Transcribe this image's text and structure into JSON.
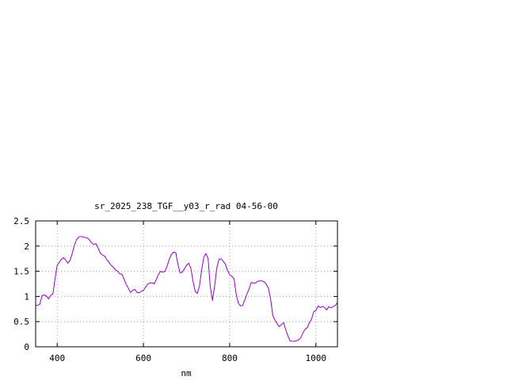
{
  "chart_data": {
    "type": "line",
    "title": "sr_2025_238_TGF__y03_r_rad 04-56-00",
    "xlabel": "nm",
    "ylabel": "",
    "xlim": [
      350,
      1050
    ],
    "ylim": [
      0,
      2.5
    ],
    "x_ticks": [
      400,
      600,
      800,
      1000
    ],
    "y_ticks": [
      0,
      0.5,
      1,
      1.5,
      2,
      2.5
    ],
    "x_tick_labels": [
      "400",
      "600",
      "800",
      "1000"
    ],
    "y_tick_labels": [
      "0",
      "0.5",
      "1",
      "1.5",
      "2",
      "2.5"
    ],
    "grid": true,
    "legend": "none",
    "series": [
      {
        "color": "#9400d3",
        "x": [
          350,
          355,
          360,
          365,
          370,
          375,
          380,
          385,
          390,
          395,
          400,
          405,
          410,
          415,
          420,
          425,
          430,
          435,
          440,
          445,
          450,
          455,
          460,
          465,
          470,
          475,
          480,
          485,
          490,
          495,
          500,
          505,
          510,
          515,
          520,
          525,
          530,
          535,
          540,
          545,
          550,
          555,
          560,
          565,
          570,
          575,
          580,
          585,
          590,
          595,
          600,
          605,
          610,
          615,
          620,
          625,
          630,
          635,
          640,
          645,
          650,
          655,
          660,
          665,
          670,
          675,
          680,
          685,
          690,
          695,
          700,
          705,
          710,
          715,
          720,
          725,
          730,
          735,
          740,
          745,
          750,
          755,
          760,
          765,
          770,
          775,
          780,
          785,
          790,
          795,
          800,
          805,
          810,
          815,
          820,
          825,
          830,
          835,
          840,
          845,
          850,
          855,
          860,
          865,
          870,
          875,
          880,
          885,
          890,
          895,
          900,
          905,
          910,
          915,
          920,
          925,
          930,
          935,
          940,
          945,
          950,
          955,
          960,
          965,
          970,
          975,
          980,
          985,
          990,
          995,
          1000,
          1005,
          1010,
          1015,
          1020,
          1025,
          1030,
          1035,
          1040,
          1045,
          1050
        ],
        "y": [
          0.82,
          0.82,
          0.85,
          1.02,
          1.03,
          1.01,
          0.95,
          1.02,
          1.05,
          1.35,
          1.62,
          1.68,
          1.74,
          1.77,
          1.72,
          1.66,
          1.72,
          1.86,
          2.02,
          2.13,
          2.18,
          2.19,
          2.18,
          2.17,
          2.16,
          2.12,
          2.06,
          2.03,
          2.05,
          1.96,
          1.86,
          1.82,
          1.8,
          1.73,
          1.68,
          1.62,
          1.58,
          1.53,
          1.5,
          1.45,
          1.44,
          1.34,
          1.24,
          1.16,
          1.08,
          1.12,
          1.14,
          1.08,
          1.07,
          1.1,
          1.12,
          1.19,
          1.24,
          1.27,
          1.27,
          1.25,
          1.34,
          1.44,
          1.5,
          1.48,
          1.5,
          1.6,
          1.74,
          1.84,
          1.88,
          1.87,
          1.64,
          1.47,
          1.48,
          1.55,
          1.62,
          1.66,
          1.56,
          1.3,
          1.1,
          1.06,
          1.21,
          1.53,
          1.78,
          1.85,
          1.75,
          1.2,
          0.92,
          1.2,
          1.56,
          1.73,
          1.75,
          1.7,
          1.64,
          1.52,
          1.43,
          1.4,
          1.35,
          1.05,
          0.87,
          0.81,
          0.82,
          0.93,
          1.05,
          1.15,
          1.28,
          1.26,
          1.27,
          1.3,
          1.31,
          1.31,
          1.29,
          1.24,
          1.16,
          0.95,
          0.62,
          0.53,
          0.46,
          0.4,
          0.44,
          0.48,
          0.34,
          0.22,
          0.12,
          0.11,
          0.11,
          0.12,
          0.14,
          0.18,
          0.28,
          0.35,
          0.38,
          0.48,
          0.55,
          0.7,
          0.72,
          0.81,
          0.78,
          0.8,
          0.78,
          0.73,
          0.8,
          0.77,
          0.8,
          0.82,
          0.88
        ]
      }
    ]
  }
}
